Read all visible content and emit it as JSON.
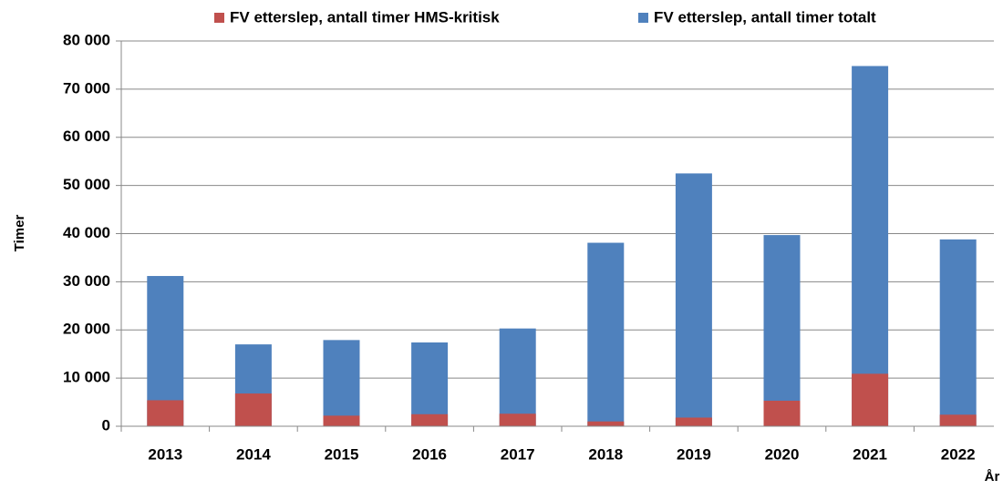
{
  "chart_data": {
    "type": "bar",
    "overlap": true,
    "categories": [
      "2013",
      "2014",
      "2015",
      "2016",
      "2017",
      "2018",
      "2019",
      "2020",
      "2021",
      "2022"
    ],
    "series": [
      {
        "name": "FV etterslep, antall timer HMS-kritisk",
        "color": "#c0504d",
        "values": [
          5400,
          6800,
          2200,
          2500,
          2600,
          1000,
          1800,
          5300,
          10900,
          2400
        ]
      },
      {
        "name": "FV etterslep, antall timer totalt",
        "color": "#4f81bd",
        "values": [
          31200,
          17000,
          17900,
          17400,
          20300,
          38100,
          52500,
          39700,
          74800,
          38800
        ]
      }
    ],
    "ylabel": "Timer",
    "xlabel": "År",
    "ylim": [
      0,
      80000
    ],
    "yticks": [
      0,
      {
        "value": 10000,
        "label": "10 000"
      },
      {
        "value": 20000,
        "label": "20 000"
      },
      {
        "value": 30000,
        "label": "30 000"
      },
      {
        "value": 40000,
        "label": "40 000"
      },
      {
        "value": 50000,
        "label": "50 000"
      },
      {
        "value": 60000,
        "label": "60 000"
      },
      {
        "value": 70000,
        "label": "70 000"
      },
      {
        "value": 80000,
        "label": "80 000"
      }
    ],
    "grid": true
  }
}
